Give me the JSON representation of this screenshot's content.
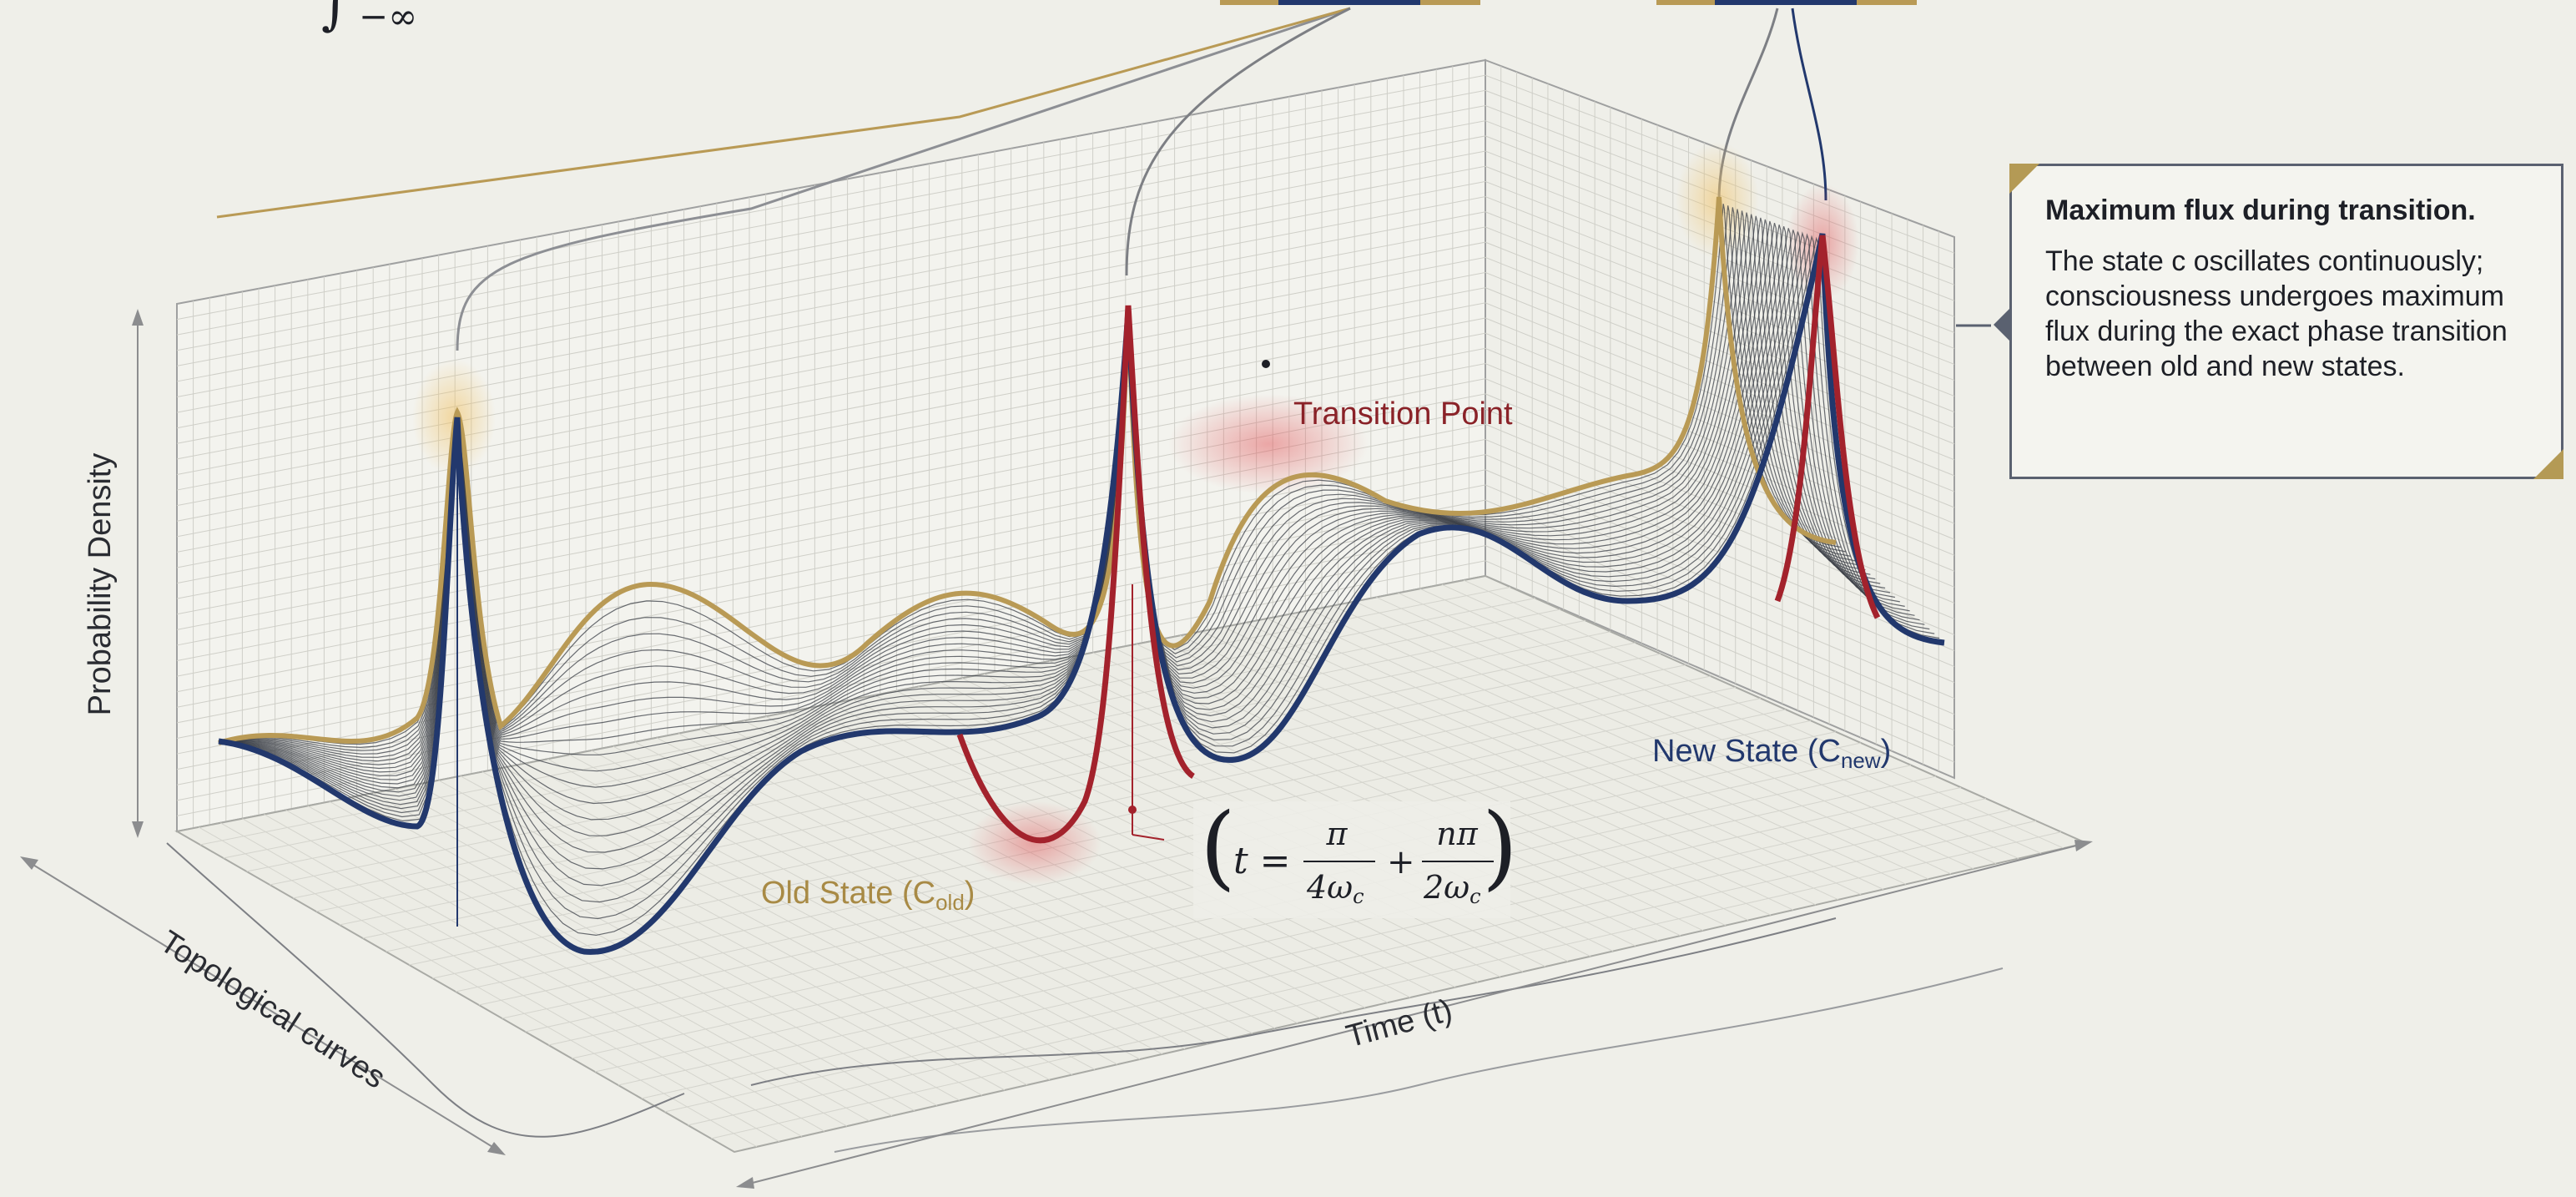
{
  "axes": {
    "y_label": "Probability Density",
    "x_label": "Time (t)",
    "z_label": "Topological curves"
  },
  "labels": {
    "transition_point": "Transition Point",
    "old_state_main": "Old State (C",
    "old_state_sub": "old",
    "old_state_close": ")",
    "new_state_main": "New State (C",
    "new_state_sub": "new",
    "new_state_close": ")"
  },
  "formula": {
    "lhs": "t =",
    "term1_num": "π",
    "term1_den": "4ω",
    "term1_den_sub": "c",
    "plus": "+",
    "term2_num": "nπ",
    "term2_den": "2ω",
    "term2_den_sub": "c"
  },
  "top_fragment": "∫",
  "top_fragment_limits": "−∞",
  "callout": {
    "title": "Maximum flux during transition.",
    "body": "The state c oscillates continuously; consciousness undergoes maximum flux during the exact phase transition between old and new states."
  },
  "colors": {
    "background": "#efefe9",
    "old_state": "#b99a55",
    "new_state": "#22386d",
    "transition": "#a3222c",
    "grid": "#c9c9c2",
    "mesh": "#3a3d45"
  }
}
